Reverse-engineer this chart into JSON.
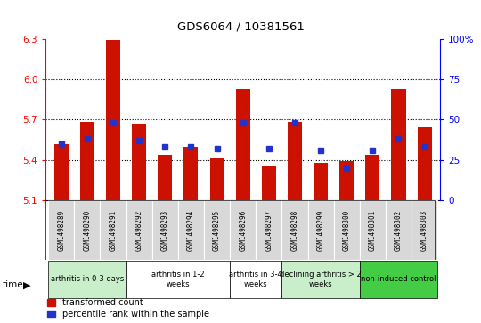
{
  "title": "GDS6064 / 10381561",
  "samples": [
    "GSM1498289",
    "GSM1498290",
    "GSM1498291",
    "GSM1498292",
    "GSM1498293",
    "GSM1498294",
    "GSM1498295",
    "GSM1498296",
    "GSM1498297",
    "GSM1498298",
    "GSM1498299",
    "GSM1498300",
    "GSM1498301",
    "GSM1498302",
    "GSM1498303"
  ],
  "red_values": [
    5.52,
    5.68,
    6.29,
    5.67,
    5.44,
    5.5,
    5.41,
    5.93,
    5.36,
    5.68,
    5.38,
    5.39,
    5.44,
    5.93,
    5.64
  ],
  "blue_pct": [
    35,
    38,
    48,
    37,
    33,
    33,
    32,
    48,
    32,
    48,
    31,
    20,
    31,
    38,
    33
  ],
  "ylim_left": [
    5.1,
    6.3
  ],
  "ylim_right": [
    0,
    100
  ],
  "yticks_left": [
    5.1,
    5.4,
    5.7,
    6.0,
    6.3
  ],
  "yticks_right": [
    0,
    25,
    50,
    75,
    100
  ],
  "ytick_labels_right": [
    "0",
    "25",
    "50",
    "75",
    "100%"
  ],
  "hlines": [
    5.4,
    5.7,
    6.0
  ],
  "groups": [
    {
      "label": "arthritis in 0-3 days",
      "indices": [
        0,
        1,
        2
      ],
      "color": "#c8efca"
    },
    {
      "label": "arthritis in 1-2\nweeks",
      "indices": [
        3,
        4,
        5,
        6
      ],
      "color": "#ffffff"
    },
    {
      "label": "arthritis in 3-4\nweeks",
      "indices": [
        7,
        8
      ],
      "color": "#ffffff"
    },
    {
      "label": "declining arthritis > 2\nweeks",
      "indices": [
        9,
        10,
        11
      ],
      "color": "#c8efca"
    },
    {
      "label": "non-induced control",
      "indices": [
        12,
        13,
        14
      ],
      "color": "#44cc44"
    }
  ],
  "bar_base": 5.1,
  "red_color": "#cc1100",
  "blue_color": "#2233cc",
  "bg_color": "#d8d8d8",
  "legend_red": "transformed count",
  "legend_blue": "percentile rank within the sample"
}
